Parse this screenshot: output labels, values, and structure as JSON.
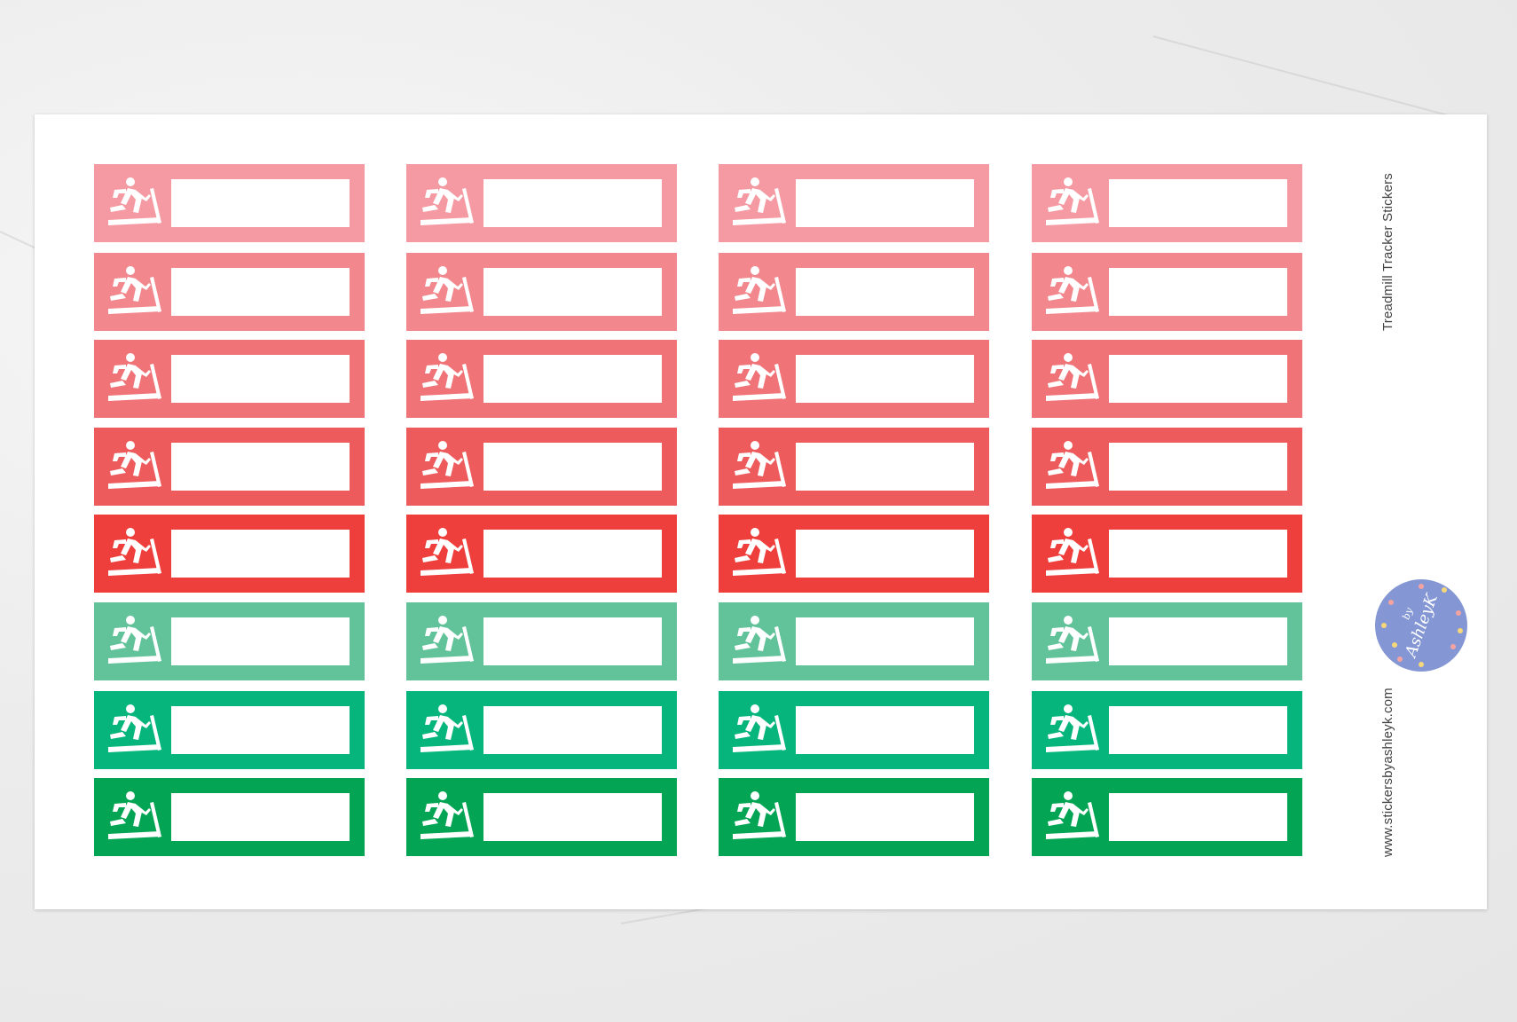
{
  "sheet": {
    "title": "Treadmill Tracker Stickers",
    "website": "www.stickersbyashleyk.com",
    "logo_text": "by AshleyK",
    "logo_color": "#8497d4",
    "columns": 4,
    "row_colors": [
      "#f59aa3",
      "#f2878d",
      "#f07377",
      "#ee5b5c",
      "#ee3f3d",
      "#62c39b",
      "#06b57c",
      "#03a554"
    ],
    "sticker_icon": "treadmill-runner-icon"
  }
}
